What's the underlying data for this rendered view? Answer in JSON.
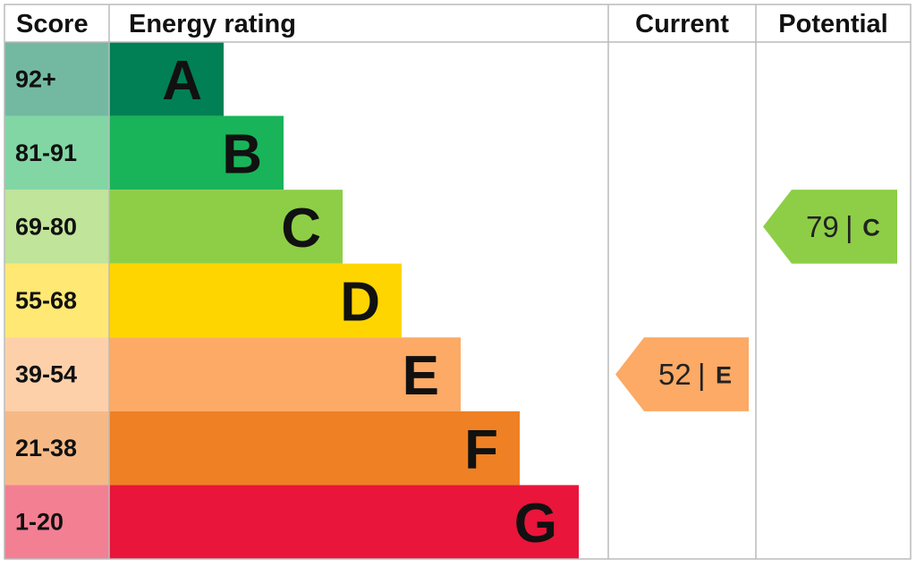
{
  "header": {
    "score": "Score",
    "rating": "Energy rating",
    "current": "Current",
    "potential": "Potential"
  },
  "bands": [
    {
      "score": "92+",
      "letter": "A",
      "color": "#008054"
    },
    {
      "score": "81-91",
      "letter": "B",
      "color": "#19b459"
    },
    {
      "score": "69-80",
      "letter": "C",
      "color": "#8dce46"
    },
    {
      "score": "55-68",
      "letter": "D",
      "color": "#ffd500"
    },
    {
      "score": "39-54",
      "letter": "E",
      "color": "#fcaa65"
    },
    {
      "score": "21-38",
      "letter": "F",
      "color": "#ef8023"
    },
    {
      "score": "1-20",
      "letter": "G",
      "color": "#e9153b"
    }
  ],
  "current": {
    "score": 52,
    "separator": "|",
    "rating": "E",
    "color": "#fcaa65"
  },
  "potential": {
    "score": 79,
    "separator": "|",
    "rating": "C",
    "color": "#8dce46"
  }
}
